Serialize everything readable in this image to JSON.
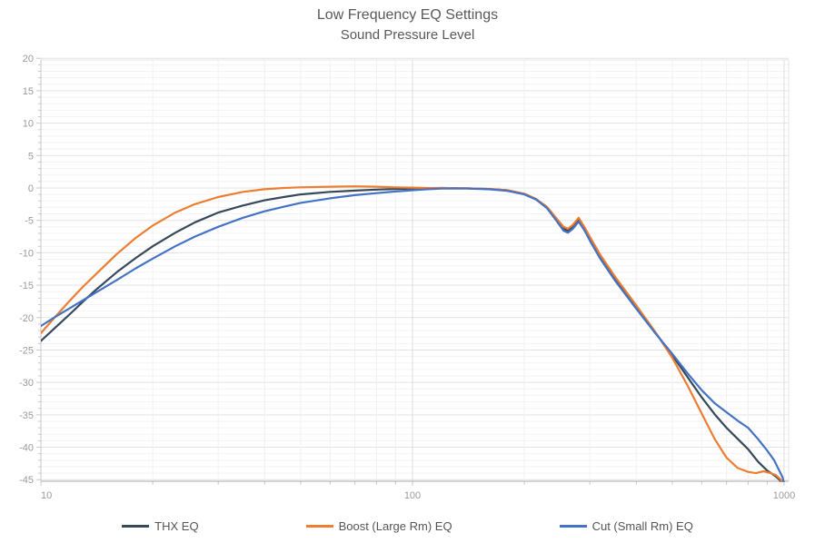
{
  "title": {
    "line1": "Low Frequency EQ Settings",
    "line2": "Sound Pressure Level"
  },
  "chart_data": {
    "type": "line",
    "title": "Low Frequency EQ Settings",
    "subtitle": "Sound Pressure Level",
    "x_axis": {
      "scale": "log",
      "min": 10,
      "max": 1000,
      "tick_labels": [
        "10",
        "100",
        "1000"
      ],
      "minor_multiples": [
        2,
        3,
        4,
        5,
        6,
        7,
        8,
        9
      ]
    },
    "y_axis": {
      "min": -45,
      "max": 20,
      "major_step": 5,
      "minor_step": 1,
      "tick_labels": [
        "20",
        "15",
        "10",
        "5",
        "0",
        "-5",
        "-10",
        "-15",
        "-20",
        "-25",
        "-30",
        "-35",
        "-40",
        "-45"
      ]
    },
    "grid": true,
    "legend_position": "bottom",
    "colors": {
      "thx": "#36495a",
      "boost": "#ed7d31",
      "cut": "#4472c4",
      "grid_major": "#e3e3e3",
      "grid_minor": "#f3f3f3",
      "axis": "#c9c9c9",
      "tick_text": "#9b9b9b"
    },
    "series": [
      {
        "name": "THX EQ",
        "color": "#36495a",
        "points": [
          [
            10,
            -23.6
          ],
          [
            11,
            -21.4
          ],
          [
            12,
            -19.4
          ],
          [
            13,
            -17.5
          ],
          [
            14,
            -15.8
          ],
          [
            16,
            -13.0
          ],
          [
            18,
            -10.8
          ],
          [
            20,
            -9.0
          ],
          [
            23,
            -6.9
          ],
          [
            26,
            -5.3
          ],
          [
            30,
            -3.8
          ],
          [
            35,
            -2.7
          ],
          [
            40,
            -1.9
          ],
          [
            45,
            -1.4
          ],
          [
            50,
            -1.0
          ],
          [
            60,
            -0.6
          ],
          [
            70,
            -0.4
          ],
          [
            80,
            -0.25
          ],
          [
            90,
            -0.15
          ],
          [
            100,
            -0.1
          ],
          [
            110,
            -0.05
          ],
          [
            120,
            0
          ],
          [
            140,
            -0.05
          ],
          [
            160,
            -0.15
          ],
          [
            180,
            -0.35
          ],
          [
            200,
            -0.9
          ],
          [
            215,
            -1.7
          ],
          [
            230,
            -3.0
          ],
          [
            245,
            -5.0
          ],
          [
            255,
            -6.3
          ],
          [
            262,
            -6.6
          ],
          [
            270,
            -6.0
          ],
          [
            280,
            -4.9
          ],
          [
            290,
            -6.2
          ],
          [
            300,
            -7.8
          ],
          [
            320,
            -10.6
          ],
          [
            350,
            -13.9
          ],
          [
            400,
            -18.4
          ],
          [
            450,
            -22.3
          ],
          [
            500,
            -25.8
          ],
          [
            550,
            -29.2
          ],
          [
            600,
            -32.3
          ],
          [
            650,
            -34.9
          ],
          [
            700,
            -37.0
          ],
          [
            750,
            -38.7
          ],
          [
            800,
            -40.3
          ],
          [
            850,
            -42.2
          ],
          [
            900,
            -43.6
          ],
          [
            950,
            -44.5
          ],
          [
            980,
            -45.2
          ],
          [
            1000,
            -46.5
          ]
        ]
      },
      {
        "name": "Boost (Large Rm) EQ",
        "color": "#ed7d31",
        "points": [
          [
            10,
            -22.4
          ],
          [
            11,
            -19.7
          ],
          [
            12,
            -17.3
          ],
          [
            13,
            -15.2
          ],
          [
            14,
            -13.4
          ],
          [
            16,
            -10.2
          ],
          [
            18,
            -7.7
          ],
          [
            20,
            -5.8
          ],
          [
            23,
            -3.8
          ],
          [
            26,
            -2.5
          ],
          [
            30,
            -1.4
          ],
          [
            35,
            -0.6
          ],
          [
            40,
            -0.2
          ],
          [
            45,
            0.0
          ],
          [
            50,
            0.1
          ],
          [
            60,
            0.2
          ],
          [
            70,
            0.25
          ],
          [
            80,
            0.2
          ],
          [
            90,
            0.1
          ],
          [
            100,
            0.05
          ],
          [
            110,
            0
          ],
          [
            120,
            0
          ],
          [
            140,
            -0.05
          ],
          [
            160,
            -0.15
          ],
          [
            180,
            -0.35
          ],
          [
            200,
            -0.9
          ],
          [
            215,
            -1.7
          ],
          [
            230,
            -2.9
          ],
          [
            245,
            -4.8
          ],
          [
            255,
            -6.0
          ],
          [
            262,
            -6.3
          ],
          [
            270,
            -5.7
          ],
          [
            280,
            -4.6
          ],
          [
            290,
            -6.0
          ],
          [
            300,
            -7.5
          ],
          [
            320,
            -10.3
          ],
          [
            350,
            -13.6
          ],
          [
            400,
            -18.1
          ],
          [
            450,
            -22.2
          ],
          [
            500,
            -26.2
          ],
          [
            550,
            -30.5
          ],
          [
            600,
            -34.8
          ],
          [
            650,
            -38.7
          ],
          [
            700,
            -41.6
          ],
          [
            750,
            -43.2
          ],
          [
            800,
            -43.8
          ],
          [
            840,
            -44.0
          ],
          [
            880,
            -43.7
          ],
          [
            920,
            -44.0
          ],
          [
            950,
            -44.3
          ],
          [
            980,
            -45.0
          ],
          [
            1000,
            -46.5
          ]
        ]
      },
      {
        "name": "Cut (Small Rm) EQ",
        "color": "#4472c4",
        "points": [
          [
            10,
            -21.3
          ],
          [
            11,
            -19.8
          ],
          [
            12,
            -18.5
          ],
          [
            13,
            -17.3
          ],
          [
            14,
            -16.2
          ],
          [
            16,
            -14.2
          ],
          [
            18,
            -12.4
          ],
          [
            20,
            -10.9
          ],
          [
            23,
            -9.0
          ],
          [
            26,
            -7.5
          ],
          [
            30,
            -6.0
          ],
          [
            35,
            -4.6
          ],
          [
            40,
            -3.6
          ],
          [
            45,
            -2.9
          ],
          [
            50,
            -2.3
          ],
          [
            60,
            -1.6
          ],
          [
            70,
            -1.1
          ],
          [
            80,
            -0.8
          ],
          [
            90,
            -0.55
          ],
          [
            100,
            -0.35
          ],
          [
            110,
            -0.2
          ],
          [
            120,
            -0.1
          ],
          [
            140,
            -0.1
          ],
          [
            160,
            -0.2
          ],
          [
            180,
            -0.45
          ],
          [
            200,
            -1.0
          ],
          [
            215,
            -1.8
          ],
          [
            230,
            -3.1
          ],
          [
            245,
            -5.2
          ],
          [
            255,
            -6.6
          ],
          [
            262,
            -6.9
          ],
          [
            270,
            -6.3
          ],
          [
            280,
            -5.2
          ],
          [
            290,
            -6.5
          ],
          [
            300,
            -8.1
          ],
          [
            320,
            -10.9
          ],
          [
            350,
            -14.2
          ],
          [
            400,
            -18.6
          ],
          [
            450,
            -22.4
          ],
          [
            500,
            -25.6
          ],
          [
            550,
            -28.6
          ],
          [
            600,
            -31.2
          ],
          [
            650,
            -33.2
          ],
          [
            700,
            -34.6
          ],
          [
            750,
            -35.9
          ],
          [
            800,
            -37.0
          ],
          [
            850,
            -38.7
          ],
          [
            900,
            -40.5
          ],
          [
            940,
            -42.0
          ],
          [
            970,
            -43.6
          ],
          [
            990,
            -44.6
          ],
          [
            1000,
            -45.6
          ]
        ]
      }
    ]
  }
}
